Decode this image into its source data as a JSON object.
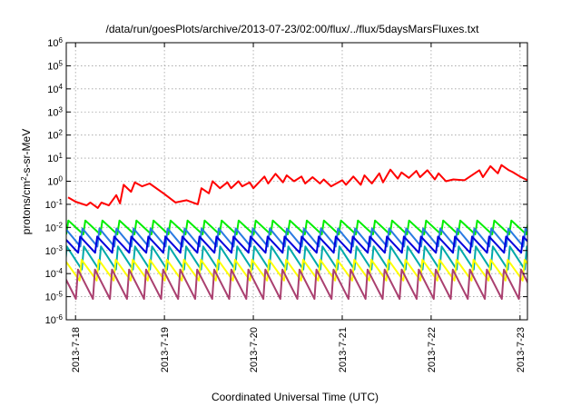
{
  "chart_data": {
    "type": "line",
    "title": "/data/run/goesPlots/archive/2013-07-23/02:00/flux/../flux/5daysMarsFluxes.txt",
    "xlabel": "Coordinated Universal Time (UTC)",
    "ylabel": "protons/cm2-s-sr-MeV",
    "ylabel_base": "protons/cm",
    "ylabel_sup": "2",
    "ylabel_rest": "-s-sr-MeV",
    "x_range": [
      "2013-07-17T21:30",
      "2013-07-23T02:00"
    ],
    "y_range": [
      1e-06,
      1000000.0
    ],
    "y_scale": "log",
    "grid": true,
    "x_ticks": [
      "2013-7-18",
      "2013-7-19",
      "2013-7-20",
      "2013-7-21",
      "2013-7-22",
      "2013-7-23"
    ],
    "y_ticks": [
      {
        "base": "10",
        "exp": "-6"
      },
      {
        "base": "10",
        "exp": "-5"
      },
      {
        "base": "10",
        "exp": "-4"
      },
      {
        "base": "10",
        "exp": "-3"
      },
      {
        "base": "10",
        "exp": "-2"
      },
      {
        "base": "10",
        "exp": "-1"
      },
      {
        "base": "10",
        "exp": "0"
      },
      {
        "base": "10",
        "exp": "1"
      },
      {
        "base": "10",
        "exp": "2"
      },
      {
        "base": "10",
        "exp": "3"
      },
      {
        "base": "10",
        "exp": "4"
      },
      {
        "base": "10",
        "exp": "5"
      },
      {
        "base": "10",
        "exp": "6"
      }
    ],
    "series": [
      {
        "color": "#ff0000",
        "x": [
          "2013-07-17T22:00",
          "2013-07-18T00:00",
          "2013-07-18T03:00",
          "2013-07-18T04:00",
          "2013-07-18T06:00",
          "2013-07-18T07:00",
          "2013-07-18T09:00",
          "2013-07-18T11:00",
          "2013-07-18T12:00",
          "2013-07-18T13:00",
          "2013-07-18T15:00",
          "2013-07-18T16:00",
          "2013-07-18T18:00",
          "2013-07-18T20:00",
          "2013-07-19T00:00",
          "2013-07-19T03:00",
          "2013-07-19T06:00",
          "2013-07-19T09:00",
          "2013-07-19T10:00",
          "2013-07-19T12:00",
          "2013-07-19T13:00",
          "2013-07-19T15:00",
          "2013-07-19T17:00",
          "2013-07-19T18:00",
          "2013-07-19T20:00",
          "2013-07-19T21:00",
          "2013-07-19T23:00",
          "2013-07-20T00:00",
          "2013-07-20T03:00",
          "2013-07-20T04:00",
          "2013-07-20T06:00",
          "2013-07-20T08:00",
          "2013-07-20T09:00",
          "2013-07-20T11:00",
          "2013-07-20T13:00",
          "2013-07-20T14:00",
          "2013-07-20T16:00",
          "2013-07-20T18:00",
          "2013-07-20T19:00",
          "2013-07-20T21:00",
          "2013-07-21T00:00",
          "2013-07-21T01:00",
          "2013-07-21T03:00",
          "2013-07-21T05:00",
          "2013-07-21T06:00",
          "2013-07-21T08:00",
          "2013-07-21T10:00",
          "2013-07-21T11:00",
          "2013-07-21T13:00",
          "2013-07-21T15:00",
          "2013-07-21T16:00",
          "2013-07-21T18:00",
          "2013-07-21T20:00",
          "2013-07-21T21:00",
          "2013-07-21T23:00",
          "2013-07-22T01:00",
          "2013-07-22T02:00",
          "2013-07-22T04:00",
          "2013-07-22T06:00",
          "2013-07-22T09:00",
          "2013-07-22T13:00",
          "2013-07-22T14:00",
          "2013-07-22T16:00",
          "2013-07-22T18:00",
          "2013-07-22T19:00",
          "2013-07-22T21:00",
          "2013-07-22T22:00",
          "2013-07-23T00:00",
          "2013-07-23T02:00"
        ],
        "y": [
          0.2,
          0.13,
          0.09,
          0.12,
          0.07,
          0.12,
          0.09,
          0.25,
          0.11,
          0.7,
          0.35,
          0.9,
          0.6,
          0.8,
          0.28,
          0.12,
          0.15,
          0.1,
          0.5,
          0.3,
          1.0,
          0.5,
          0.9,
          0.5,
          1.0,
          0.6,
          0.9,
          0.5,
          1.6,
          0.8,
          2.1,
          0.9,
          1.8,
          1.0,
          1.6,
          0.8,
          1.5,
          0.8,
          1.2,
          0.6,
          1.1,
          0.7,
          1.6,
          0.7,
          1.8,
          0.8,
          2.2,
          0.9,
          3.2,
          1.3,
          2.4,
          1.4,
          2.8,
          1.5,
          3.0,
          1.2,
          2.2,
          1.0,
          1.2,
          1.1,
          3.0,
          1.5,
          4.5,
          2.2,
          5.0,
          3.0,
          2.5,
          1.6,
          1.1
        ]
      },
      {
        "color": "#00ee00",
        "pattern": "sawtooth",
        "peak": 0.02,
        "trough": 0.005,
        "period_hours": 4.6,
        "phase_hours": 0.0
      },
      {
        "color": "#2a7ae2",
        "pattern": "sawtooth",
        "peak": 0.009,
        "trough": 0.0015,
        "period_hours": 4.6,
        "phase_hours": 0.8
      },
      {
        "color": "#0000dd",
        "pattern": "sawtooth",
        "peak": 0.004,
        "trough": 0.0008,
        "period_hours": 4.6,
        "phase_hours": 1.4
      },
      {
        "color": "#00aaaa",
        "pattern": "sawtooth",
        "peak": 0.0015,
        "trough": 0.00015,
        "period_hours": 4.6,
        "phase_hours": 0.4
      },
      {
        "color": "#ffff00",
        "pattern": "sawtooth",
        "peak": 0.0004,
        "trough": 5e-05,
        "period_hours": 4.6,
        "phase_hours": 1.0
      },
      {
        "color": "#aa4070",
        "pattern": "sawtooth",
        "peak": 0.00015,
        "trough": 8e-06,
        "period_hours": 4.6,
        "phase_hours": 2.0
      }
    ]
  }
}
